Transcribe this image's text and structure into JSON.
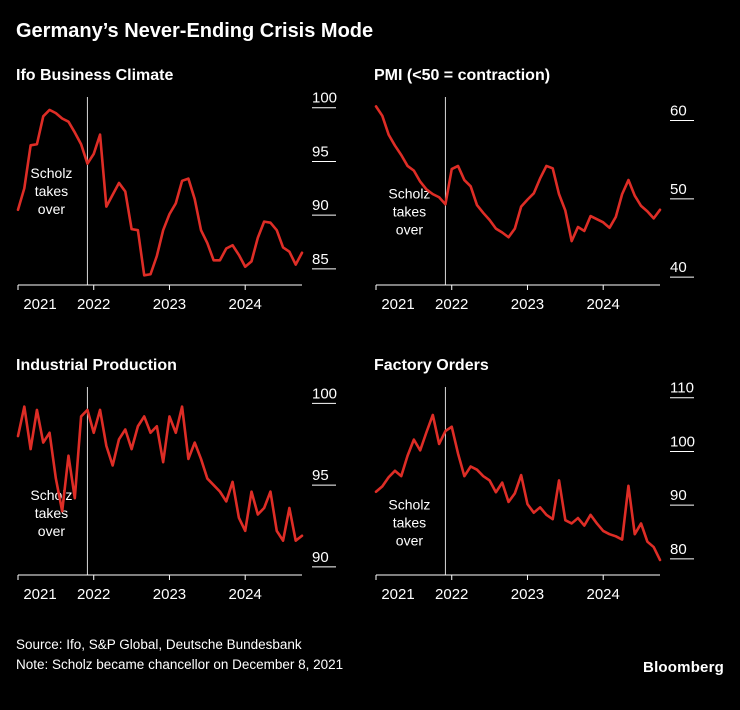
{
  "page": {
    "title": "Germany’s Never-Ending Crisis Mode",
    "source_line": "Source: Ifo, S&P Global, Deutsche Bundesbank",
    "note_line": "Note: Scholz became chancellor on December 8, 2021",
    "brand": "Bloomberg"
  },
  "colors": {
    "background": "#000000",
    "line": "#de2d26",
    "text": "#ffffff",
    "axis": "#ffffff",
    "event_line": "#d9d9d9"
  },
  "annotation": {
    "lines": [
      "Scholz",
      "takes",
      "over"
    ]
  },
  "chart_data": [
    {
      "type": "line",
      "title": "Ifo Business Climate",
      "x_start": "2021-01",
      "x_labels": [
        "2021",
        "2022",
        "2023",
        "2024"
      ],
      "x_tick_indices": [
        0,
        12,
        24,
        36
      ],
      "y_ticks": [
        85,
        90,
        95,
        100
      ],
      "ylim": [
        83.5,
        101
      ],
      "event_index": 11,
      "annotation_y_frac": 0.5,
      "legend": "none",
      "grid": false,
      "values": [
        90.5,
        92.5,
        96.5,
        96.6,
        99.2,
        99.8,
        99.5,
        99.0,
        98.7,
        97.7,
        96.6,
        94.8,
        95.7,
        97.5,
        90.8,
        91.9,
        93.0,
        92.2,
        88.7,
        88.6,
        84.4,
        84.5,
        86.2,
        88.6,
        90.1,
        91.1,
        93.2,
        93.4,
        91.5,
        88.6,
        87.4,
        85.8,
        85.8,
        86.9,
        87.2,
        86.3,
        85.2,
        85.7,
        87.9,
        89.4,
        89.3,
        88.6,
        87.0,
        86.6,
        85.4,
        86.5
      ]
    },
    {
      "type": "line",
      "title": "PMI (<50 = contraction)",
      "x_start": "2021-01",
      "x_labels": [
        "2021",
        "2022",
        "2023",
        "2024"
      ],
      "x_tick_indices": [
        0,
        12,
        24,
        36
      ],
      "y_ticks": [
        40,
        50,
        60
      ],
      "ylim": [
        39,
        63
      ],
      "event_index": 11,
      "annotation_y_frac": 0.61,
      "legend": "none",
      "grid": false,
      "values": [
        61.8,
        60.6,
        58.2,
        56.8,
        55.6,
        54.2,
        53.6,
        52.2,
        51.2,
        50.6,
        50.2,
        49.3,
        53.8,
        54.2,
        52.4,
        51.6,
        49.2,
        48.2,
        47.3,
        46.2,
        45.7,
        45.1,
        46.2,
        49.0,
        49.9,
        50.7,
        52.6,
        54.2,
        53.9,
        50.6,
        48.5,
        44.6,
        46.4,
        45.9,
        47.8,
        47.4,
        47.0,
        46.3,
        47.7,
        50.6,
        52.4,
        50.4,
        49.1,
        48.4,
        47.5,
        48.6
      ]
    },
    {
      "type": "line",
      "title": "Industrial Production",
      "x_start": "2021-01",
      "x_labels": [
        "2021",
        "2022",
        "2023",
        "2024"
      ],
      "x_tick_indices": [
        0,
        12,
        24,
        36
      ],
      "y_ticks": [
        90,
        95,
        100
      ],
      "ylim": [
        89.5,
        101
      ],
      "event_index": 11,
      "annotation_y_frac": 0.67,
      "legend": "none",
      "grid": false,
      "values": [
        98.0,
        99.8,
        97.2,
        99.6,
        97.6,
        98.2,
        95.4,
        93.4,
        96.8,
        94.2,
        99.2,
        99.6,
        98.2,
        99.6,
        97.4,
        96.2,
        97.8,
        98.4,
        97.2,
        98.6,
        99.2,
        98.2,
        98.6,
        96.4,
        99.2,
        98.2,
        99.8,
        96.6,
        97.6,
        96.6,
        95.4,
        95.0,
        94.6,
        94.0,
        95.2,
        93.0,
        92.2,
        94.6,
        93.2,
        93.6,
        94.6,
        92.2,
        91.6,
        93.6,
        91.6,
        91.9
      ]
    },
    {
      "type": "line",
      "title": "Factory Orders",
      "x_start": "2021-01",
      "x_labels": [
        "2021",
        "2022",
        "2023",
        "2024"
      ],
      "x_tick_indices": [
        0,
        12,
        24,
        36
      ],
      "y_ticks": [
        80,
        90,
        100,
        110
      ],
      "ylim": [
        77,
        112
      ],
      "event_index": 11,
      "annotation_y_frac": 0.72,
      "legend": "none",
      "grid": false,
      "values": [
        92.5,
        93.5,
        95.2,
        96.4,
        95.4,
        99.2,
        102.2,
        100.2,
        103.6,
        106.8,
        101.4,
        103.8,
        104.6,
        99.6,
        95.4,
        97.2,
        96.6,
        95.4,
        94.6,
        92.4,
        94.2,
        90.6,
        92.2,
        95.6,
        90.2,
        88.6,
        89.6,
        88.2,
        87.4,
        94.6,
        87.2,
        86.6,
        87.6,
        86.2,
        88.2,
        86.6,
        85.2,
        84.6,
        84.2,
        83.6,
        93.6,
        84.6,
        86.6,
        83.2,
        82.2,
        79.8
      ]
    }
  ]
}
